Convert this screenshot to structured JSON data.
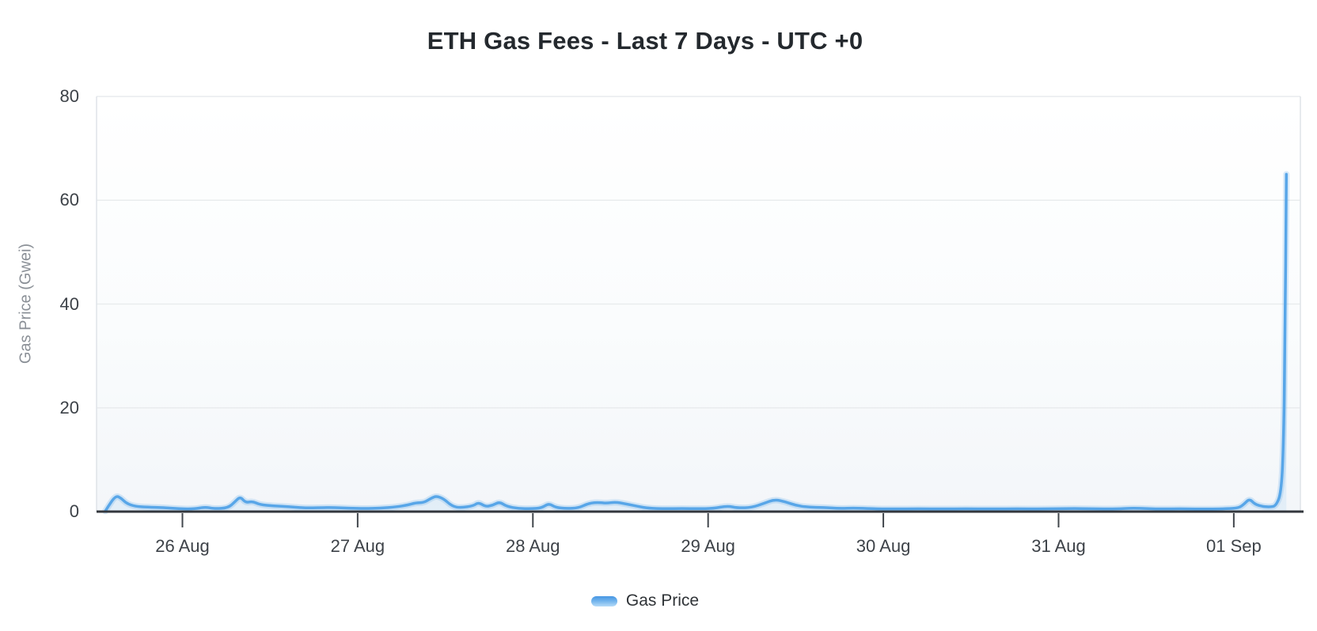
{
  "page": {
    "title": "ETH Gas Fees - Last 7 Days - UTC +0"
  },
  "colors": {
    "accent": "#58a6e8",
    "accent_glow": "rgba(88,166,232,0.22)",
    "fill_top": "rgba(88,166,232,0.50)",
    "fill_bottom": "rgba(88,166,232,0.10)",
    "axis_line": "#33373d",
    "tick_mark": "#41464c",
    "grid_line": "#e9ecee",
    "plot_border": "#dfe3e8",
    "title_text": "#24292e",
    "tick_text": "#3d4248",
    "muted_text": "#8b9097"
  },
  "legend": {
    "items": [
      {
        "label": "Gas Price"
      }
    ]
  },
  "chart_data": {
    "type": "area",
    "title": "ETH Gas Fees - Last 7 Days - UTC +0",
    "xlabel": "",
    "ylabel": "Gas Price (Gwei)",
    "x_tick_labels": [
      "26 Aug",
      "27 Aug",
      "28 Aug",
      "29 Aug",
      "30 Aug",
      "31 Aug",
      "01 Sep"
    ],
    "y_ticks": [
      0,
      20,
      40,
      60,
      80
    ],
    "ylim": [
      0,
      80
    ],
    "x_unit": "days relative to 26 Aug 00:00 (UTC+0)",
    "xlim_days": [
      -0.49,
      6.38
    ],
    "grid": "horizontal-only",
    "legend_position": "bottom",
    "series": [
      {
        "name": "Gas Price",
        "units": "Gwei",
        "points": [
          [
            -0.44,
            0.1
          ],
          [
            -0.42,
            1.2
          ],
          [
            -0.38,
            3.1
          ],
          [
            -0.35,
            2.6
          ],
          [
            -0.32,
            1.6
          ],
          [
            -0.27,
            1.0
          ],
          [
            -0.2,
            0.85
          ],
          [
            -0.11,
            0.8
          ],
          [
            -0.02,
            0.55
          ],
          [
            0.07,
            0.5
          ],
          [
            0.13,
            0.9
          ],
          [
            0.18,
            0.55
          ],
          [
            0.26,
            0.7
          ],
          [
            0.3,
            1.9
          ],
          [
            0.33,
            2.9
          ],
          [
            0.36,
            1.7
          ],
          [
            0.4,
            2.0
          ],
          [
            0.44,
            1.35
          ],
          [
            0.52,
            1.1
          ],
          [
            0.61,
            0.95
          ],
          [
            0.7,
            0.7
          ],
          [
            0.79,
            0.75
          ],
          [
            0.86,
            0.8
          ],
          [
            0.95,
            0.65
          ],
          [
            1.04,
            0.6
          ],
          [
            1.13,
            0.65
          ],
          [
            1.22,
            0.9
          ],
          [
            1.29,
            1.3
          ],
          [
            1.33,
            1.7
          ],
          [
            1.38,
            1.75
          ],
          [
            1.42,
            2.6
          ],
          [
            1.45,
            3.0
          ],
          [
            1.49,
            2.5
          ],
          [
            1.54,
            1.0
          ],
          [
            1.59,
            0.75
          ],
          [
            1.66,
            1.1
          ],
          [
            1.69,
            1.8
          ],
          [
            1.73,
            0.95
          ],
          [
            1.77,
            1.2
          ],
          [
            1.81,
            1.9
          ],
          [
            1.85,
            1.0
          ],
          [
            1.92,
            0.6
          ],
          [
            1.99,
            0.55
          ],
          [
            2.05,
            0.7
          ],
          [
            2.09,
            1.6
          ],
          [
            2.13,
            0.8
          ],
          [
            2.19,
            0.6
          ],
          [
            2.26,
            0.7
          ],
          [
            2.31,
            1.5
          ],
          [
            2.36,
            1.8
          ],
          [
            2.42,
            1.6
          ],
          [
            2.47,
            1.85
          ],
          [
            2.53,
            1.5
          ],
          [
            2.6,
            1.0
          ],
          [
            2.66,
            0.65
          ],
          [
            2.76,
            0.55
          ],
          [
            2.85,
            0.6
          ],
          [
            2.94,
            0.55
          ],
          [
            3.03,
            0.6
          ],
          [
            3.11,
            1.1
          ],
          [
            3.17,
            0.7
          ],
          [
            3.25,
            0.8
          ],
          [
            3.32,
            1.6
          ],
          [
            3.38,
            2.35
          ],
          [
            3.44,
            1.9
          ],
          [
            3.5,
            1.2
          ],
          [
            3.57,
            0.85
          ],
          [
            3.66,
            0.8
          ],
          [
            3.75,
            0.6
          ],
          [
            3.84,
            0.7
          ],
          [
            3.93,
            0.55
          ],
          [
            4.06,
            0.5
          ],
          [
            4.2,
            0.55
          ],
          [
            4.34,
            0.5
          ],
          [
            4.47,
            0.55
          ],
          [
            4.61,
            0.5
          ],
          [
            4.76,
            0.55
          ],
          [
            4.92,
            0.5
          ],
          [
            5.06,
            0.6
          ],
          [
            5.19,
            0.55
          ],
          [
            5.33,
            0.5
          ],
          [
            5.42,
            0.7
          ],
          [
            5.51,
            0.55
          ],
          [
            5.6,
            0.5
          ],
          [
            5.69,
            0.55
          ],
          [
            5.78,
            0.5
          ],
          [
            5.87,
            0.5
          ],
          [
            5.96,
            0.55
          ],
          [
            6.03,
            0.7
          ],
          [
            6.06,
            1.5
          ],
          [
            6.09,
            2.5
          ],
          [
            6.12,
            1.4
          ],
          [
            6.17,
            0.95
          ],
          [
            6.21,
            0.9
          ],
          [
            6.24,
            1.1
          ],
          [
            6.27,
            3.5
          ],
          [
            6.283,
            12
          ],
          [
            6.292,
            30
          ],
          [
            6.3,
            65
          ]
        ]
      }
    ]
  }
}
